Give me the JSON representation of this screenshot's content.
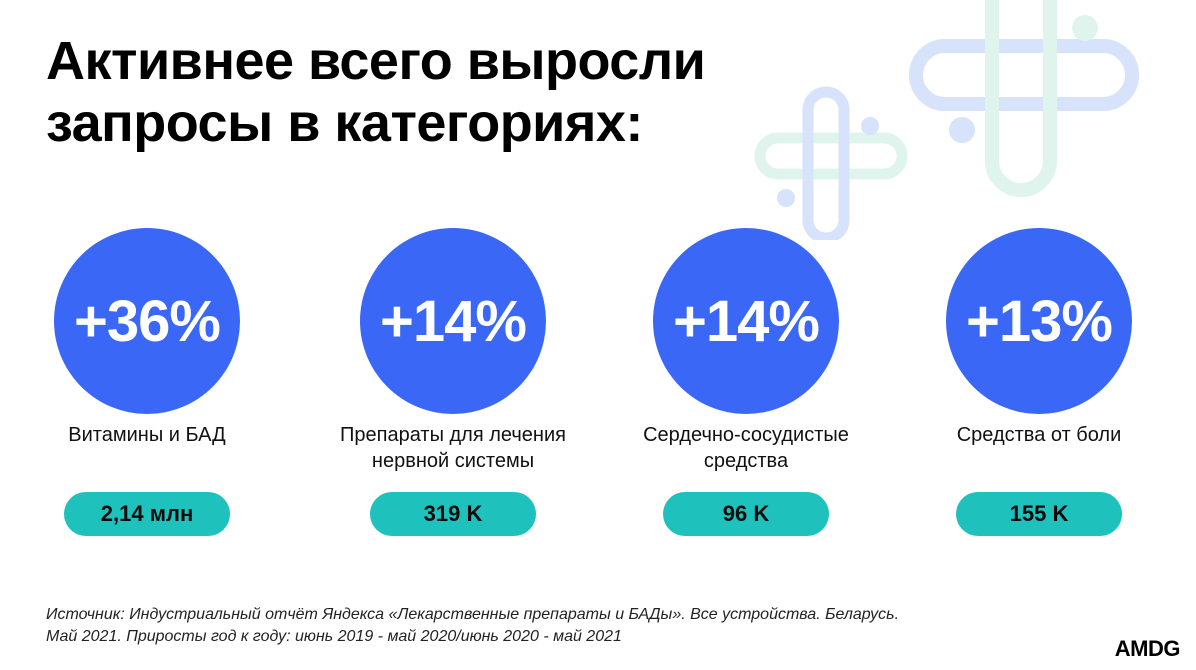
{
  "title": {
    "line1": "Активнее всего выросли",
    "line2": "запросы в категориях:"
  },
  "categories": [
    {
      "growth": "+36%",
      "label_lines": [
        "Витамины и БАД",
        ""
      ],
      "queries": "2,14 млн"
    },
    {
      "growth": "+14%",
      "label_lines": [
        "Препараты для лечения",
        "нервной системы"
      ],
      "queries": "319 K"
    },
    {
      "growth": "+14%",
      "label_lines": [
        "Сердечно-сосудистые",
        "средства"
      ],
      "queries": "96 K"
    },
    {
      "growth": "+13%",
      "label_lines": [
        "Средства от боли",
        ""
      ],
      "queries": "155 K"
    }
  ],
  "source": {
    "line1": "Источник: Индустриальный отчёт Яндекса «Лекарственные препараты и БАДы». Все устройства. Беларусь.",
    "line2": "Май 2021. Приросты год к году: июнь 2019 - май 2020/июнь 2020 - май 2021"
  },
  "logo": "AMDG",
  "colors": {
    "circle": "#3b67f7",
    "pill": "#1fc1bd",
    "deco_blue": "#d7e2fb",
    "deco_green": "#e0f4ee"
  },
  "decoration_icon": "medical-cross-icon"
}
